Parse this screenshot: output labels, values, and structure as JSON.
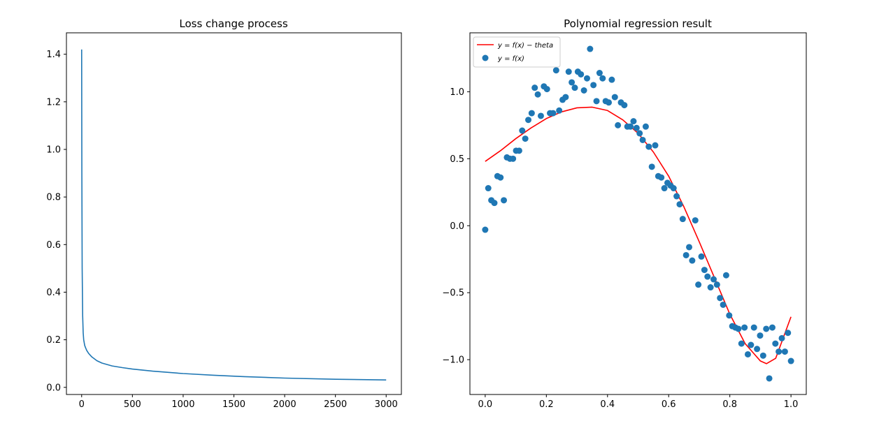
{
  "figure": {
    "background": "#ffffff"
  },
  "chart_data": [
    {
      "type": "line",
      "title": "Loss change process",
      "xlabel": "",
      "ylabel": "",
      "xlim": [
        -150,
        3150
      ],
      "ylim": [
        -0.03,
        1.49
      ],
      "xticks": [
        0,
        500,
        1000,
        1500,
        2000,
        2500,
        3000
      ],
      "xtick_labels": [
        "0",
        "500",
        "1000",
        "1500",
        "2000",
        "2500",
        "3000"
      ],
      "yticks": [
        0.0,
        0.2,
        0.4,
        0.6,
        0.8,
        1.0,
        1.2,
        1.4
      ],
      "ytick_labels": [
        "0.0",
        "0.2",
        "0.4",
        "0.6",
        "0.8",
        "1.0",
        "1.2",
        "1.4"
      ],
      "grid": false,
      "series": [
        {
          "color": "#1f77b4",
          "x": [
            0,
            2,
            5,
            10,
            15,
            20,
            30,
            40,
            50,
            70,
            100,
            150,
            200,
            300,
            400,
            500,
            700,
            1000,
            1300,
            1600,
            2000,
            2500,
            3000
          ],
          "y": [
            1.42,
            0.9,
            0.5,
            0.3,
            0.23,
            0.2,
            0.176,
            0.165,
            0.155,
            0.142,
            0.128,
            0.112,
            0.102,
            0.09,
            0.083,
            0.077,
            0.068,
            0.058,
            0.051,
            0.045,
            0.039,
            0.034,
            0.031
          ]
        }
      ]
    },
    {
      "type": "scatter",
      "title": "Polynomial regression result",
      "xlabel": "",
      "ylabel": "",
      "xlim": [
        -0.05,
        1.05
      ],
      "ylim": [
        -1.26,
        1.44
      ],
      "xticks": [
        0.0,
        0.2,
        0.4,
        0.6,
        0.8,
        1.0
      ],
      "xtick_labels": [
        "0.0",
        "0.2",
        "0.4",
        "0.6",
        "0.8",
        "1.0"
      ],
      "yticks": [
        -1.0,
        -0.5,
        0.0,
        0.5,
        1.0
      ],
      "ytick_labels": [
        "−1.0",
        "−0.5",
        "0.0",
        "0.5",
        "1.0"
      ],
      "grid": false,
      "legend_position": "top-left",
      "legend": [
        {
          "label": "y = f(x) − theta",
          "kind": "line",
          "color": "#ff0000"
        },
        {
          "label": "y = f(x)",
          "kind": "marker",
          "color": "#1f77b4"
        }
      ],
      "series": [
        {
          "name": "y = f(x) − theta",
          "kind": "line",
          "color": "#ff0000",
          "x": [
            0.0,
            0.05,
            0.1,
            0.15,
            0.2,
            0.25,
            0.3,
            0.35,
            0.4,
            0.45,
            0.5,
            0.55,
            0.6,
            0.65,
            0.7,
            0.75,
            0.8,
            0.85,
            0.9,
            0.92,
            0.95,
            1.0
          ],
          "y": [
            0.48,
            0.56,
            0.65,
            0.73,
            0.8,
            0.85,
            0.88,
            0.885,
            0.86,
            0.79,
            0.69,
            0.55,
            0.37,
            0.14,
            -0.12,
            -0.39,
            -0.66,
            -0.88,
            -1.01,
            -1.03,
            -0.99,
            -0.68
          ]
        },
        {
          "name": "y = f(x)",
          "kind": "scatter",
          "color": "#1f77b4",
          "x": [
            0.0,
            0.01,
            0.02,
            0.03,
            0.04,
            0.05,
            0.061,
            0.071,
            0.081,
            0.091,
            0.101,
            0.111,
            0.121,
            0.131,
            0.141,
            0.152,
            0.162,
            0.172,
            0.182,
            0.192,
            0.202,
            0.212,
            0.222,
            0.232,
            0.242,
            0.253,
            0.263,
            0.273,
            0.283,
            0.293,
            0.303,
            0.313,
            0.323,
            0.333,
            0.343,
            0.354,
            0.364,
            0.374,
            0.384,
            0.394,
            0.404,
            0.414,
            0.424,
            0.434,
            0.444,
            0.455,
            0.465,
            0.475,
            0.485,
            0.495,
            0.505,
            0.515,
            0.525,
            0.535,
            0.545,
            0.556,
            0.566,
            0.576,
            0.586,
            0.596,
            0.606,
            0.616,
            0.626,
            0.636,
            0.646,
            0.657,
            0.667,
            0.677,
            0.687,
            0.697,
            0.707,
            0.717,
            0.727,
            0.737,
            0.747,
            0.758,
            0.768,
            0.778,
            0.788,
            0.798,
            0.808,
            0.818,
            0.828,
            0.838,
            0.848,
            0.859,
            0.869,
            0.879,
            0.889,
            0.899,
            0.909,
            0.919,
            0.929,
            0.939,
            0.949,
            0.96,
            0.97,
            0.98,
            0.99,
            1.0
          ],
          "y": [
            -0.03,
            0.28,
            0.19,
            0.17,
            0.37,
            0.36,
            0.19,
            0.51,
            0.5,
            0.5,
            0.56,
            0.56,
            0.71,
            0.65,
            0.79,
            0.84,
            1.03,
            0.98,
            0.82,
            1.04,
            1.02,
            0.84,
            0.84,
            1.16,
            0.86,
            0.94,
            0.96,
            1.15,
            1.07,
            1.03,
            1.15,
            1.13,
            1.01,
            1.1,
            1.32,
            1.05,
            0.93,
            1.14,
            1.1,
            0.93,
            0.92,
            1.09,
            0.96,
            0.75,
            0.92,
            0.9,
            0.74,
            0.74,
            0.78,
            0.73,
            0.69,
            0.64,
            0.74,
            0.59,
            0.44,
            0.6,
            0.37,
            0.36,
            0.28,
            0.32,
            0.3,
            0.28,
            0.22,
            0.16,
            0.05,
            -0.22,
            -0.16,
            -0.26,
            0.04,
            -0.44,
            -0.23,
            -0.33,
            -0.38,
            -0.46,
            -0.4,
            -0.44,
            -0.54,
            -0.59,
            -0.37,
            -0.67,
            -0.75,
            -0.76,
            -0.77,
            -0.88,
            -0.76,
            -0.96,
            -0.89,
            -0.76,
            -0.92,
            -0.82,
            -0.97,
            -0.77,
            -1.14,
            -0.76,
            -0.88,
            -0.94,
            -0.84,
            -0.94,
            -0.8,
            -1.01
          ]
        }
      ]
    }
  ]
}
